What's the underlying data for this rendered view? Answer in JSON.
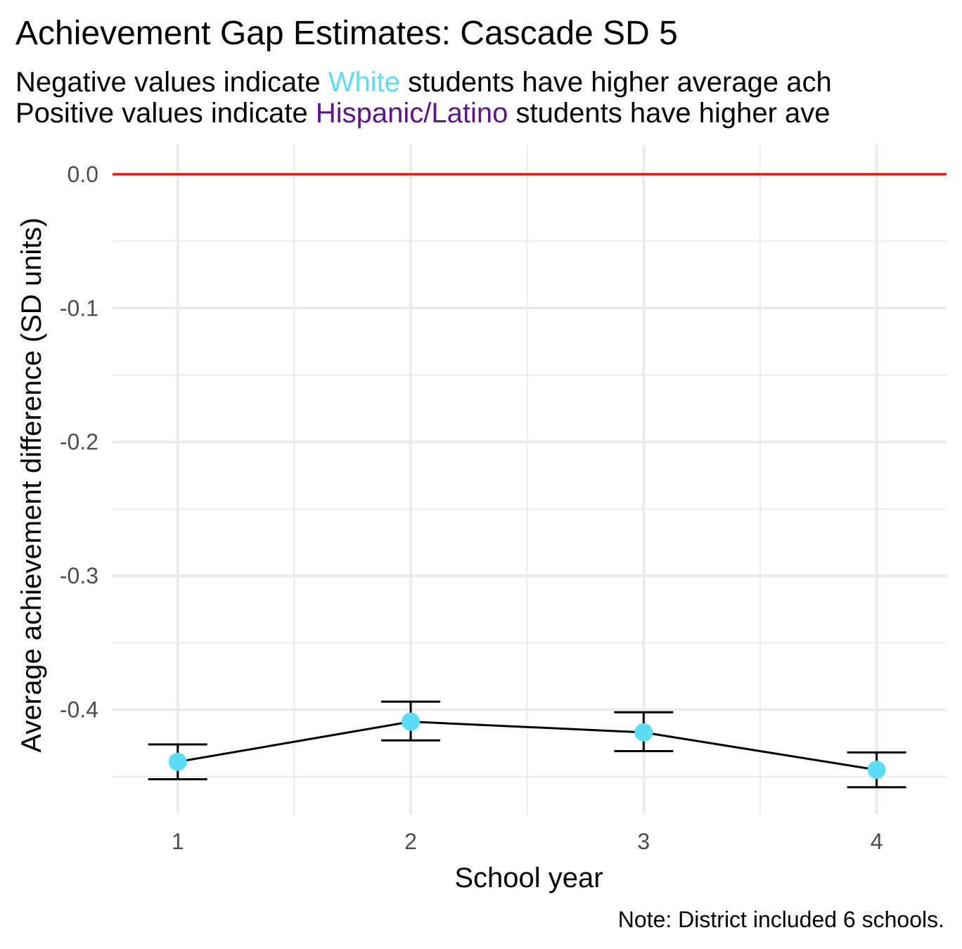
{
  "chart_data": {
    "type": "line",
    "title": "Achievement Gap Estimates: Cascade SD 5",
    "subtitle": {
      "line1": {
        "before": "Negative values indicate ",
        "highlight": "White",
        "after": " students have higher average ach"
      },
      "line2": {
        "before": "Positive values indicate ",
        "highlight": "Hispanic/Latino",
        "after": " students have higher ave"
      }
    },
    "xlabel": "School year",
    "ylabel": "Average achievement difference (SD units)",
    "caption": "Note: District included 6 schools.",
    "x": [
      1,
      2,
      3,
      4
    ],
    "x_tick_labels": [
      "1",
      "2",
      "3",
      "4"
    ],
    "y_tick_labels": [
      "0.0",
      "-0.1",
      "-0.2",
      "-0.3",
      "-0.4"
    ],
    "y_ticks": [
      0.0,
      -0.1,
      -0.2,
      -0.3,
      -0.4
    ],
    "y_minor_ticks": [
      -0.05,
      -0.15,
      -0.25,
      -0.35,
      -0.45
    ],
    "xlim": [
      0.72,
      4.3
    ],
    "ylim": [
      -0.478,
      0.022
    ],
    "series": [
      {
        "values": [
          -0.439,
          -0.409,
          -0.417,
          -0.445
        ],
        "lower": [
          -0.452,
          -0.423,
          -0.431,
          -0.458
        ],
        "upper": [
          -0.426,
          -0.394,
          -0.402,
          -0.432
        ]
      }
    ],
    "reference_line": 0.0,
    "grid": true,
    "colors": {
      "point": "#5BDDF5",
      "line": "#000000",
      "reference": "#E8191F",
      "grid": "#EBEBEB",
      "white_label": "#5BDDF5",
      "hispanic_label": "#61128F"
    }
  }
}
